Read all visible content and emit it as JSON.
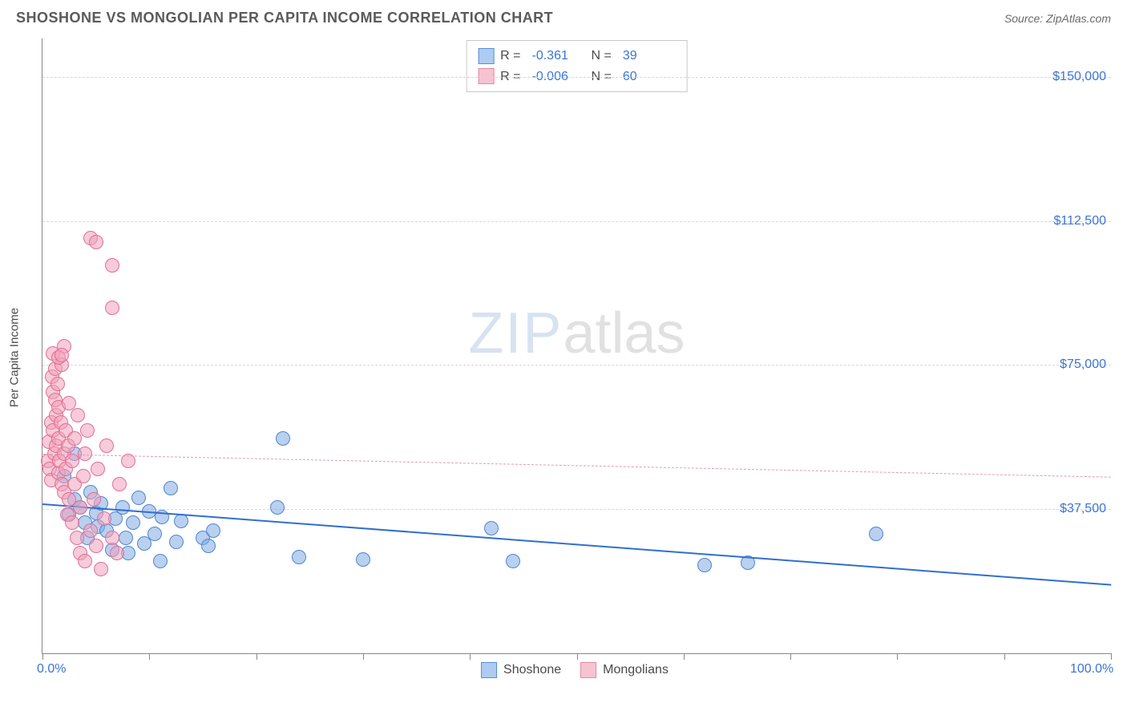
{
  "header": {
    "title": "SHOSHONE VS MONGOLIAN PER CAPITA INCOME CORRELATION CHART",
    "source": "Source: ZipAtlas.com"
  },
  "watermark": {
    "left": "ZIP",
    "right": "atlas"
  },
  "chart": {
    "type": "scatter",
    "y_axis_label": "Per Capita Income",
    "background_color": "#ffffff",
    "grid_color": "#d8d8d8",
    "axis_color": "#888888",
    "label_color": "#3b74d4",
    "text_color": "#4a4a4a",
    "xlim": [
      0,
      100
    ],
    "ylim": [
      0,
      160000
    ],
    "x_ticks": [
      0,
      10,
      20,
      30,
      40,
      50,
      60,
      70,
      80,
      90,
      100
    ],
    "x_tick_labels": {
      "0": "0.0%",
      "100": "100.0%"
    },
    "y_gridlines": [
      {
        "v": 37500,
        "label": "$37,500"
      },
      {
        "v": 75000,
        "label": "$75,000"
      },
      {
        "v": 112500,
        "label": "$112,500"
      },
      {
        "v": 150000,
        "label": "$150,000"
      }
    ],
    "legend_top": [
      {
        "swatch_fill": "#aeccf2",
        "swatch_border": "#5a8ed6",
        "r_label": "R =",
        "r": "-0.361",
        "n_label": "N =",
        "n": "39"
      },
      {
        "swatch_fill": "#f6c3d1",
        "swatch_border": "#e48aa4",
        "r_label": "R =",
        "r": "-0.006",
        "n_label": "N =",
        "n": "60"
      }
    ],
    "legend_bottom": [
      {
        "swatch_fill": "#aeccf2",
        "swatch_border": "#5a8ed6",
        "label": "Shoshone"
      },
      {
        "swatch_fill": "#f6c3d1",
        "swatch_border": "#e48aa4",
        "label": "Mongolians"
      }
    ],
    "series": {
      "shoshone": {
        "marker_fill": "rgba(130,170,225,0.55)",
        "marker_stroke": "#4f86d1",
        "marker_radius": 9,
        "trend": {
          "color": "#2f6fd0",
          "width": 2.5,
          "dash": "solid",
          "y_at_x0": 39000,
          "y_at_x100": 18000
        },
        "points": [
          [
            2,
            46000
          ],
          [
            2.5,
            36000
          ],
          [
            3,
            40000
          ],
          [
            3,
            52000
          ],
          [
            3.5,
            38000
          ],
          [
            4,
            34000
          ],
          [
            4.2,
            30000
          ],
          [
            4.5,
            42000
          ],
          [
            5,
            36500
          ],
          [
            5.2,
            33000
          ],
          [
            5.5,
            39000
          ],
          [
            6,
            32000
          ],
          [
            6.5,
            27000
          ],
          [
            6.8,
            35000
          ],
          [
            7.5,
            38000
          ],
          [
            7.8,
            30000
          ],
          [
            8,
            26000
          ],
          [
            8.5,
            34000
          ],
          [
            9,
            40500
          ],
          [
            9.5,
            28500
          ],
          [
            10,
            37000
          ],
          [
            10.5,
            31000
          ],
          [
            11,
            24000
          ],
          [
            11.2,
            35500
          ],
          [
            12,
            43000
          ],
          [
            12.5,
            29000
          ],
          [
            13,
            34500
          ],
          [
            15,
            30000
          ],
          [
            15.5,
            28000
          ],
          [
            16,
            32000
          ],
          [
            22,
            38000
          ],
          [
            22.5,
            56000
          ],
          [
            24,
            25000
          ],
          [
            30,
            24500
          ],
          [
            42,
            32500
          ],
          [
            44,
            24000
          ],
          [
            62,
            23000
          ],
          [
            66,
            23500
          ],
          [
            78,
            31000
          ]
        ]
      },
      "mongolians": {
        "marker_fill": "rgba(240,160,185,0.55)",
        "marker_stroke": "#e06f93",
        "marker_radius": 9,
        "trend": {
          "color": "#e49ab1",
          "width": 1.5,
          "dash": "6,6",
          "y_at_x0": 52000,
          "y_at_x100": 46000
        },
        "points": [
          [
            0.5,
            50000
          ],
          [
            0.6,
            55000
          ],
          [
            0.7,
            48000
          ],
          [
            0.8,
            60000
          ],
          [
            0.8,
            45000
          ],
          [
            0.9,
            72000
          ],
          [
            1,
            78000
          ],
          [
            1,
            68000
          ],
          [
            1,
            58000
          ],
          [
            1.1,
            52000
          ],
          [
            1.2,
            66000
          ],
          [
            1.2,
            74000
          ],
          [
            1.3,
            62000
          ],
          [
            1.3,
            54000
          ],
          [
            1.4,
            70000
          ],
          [
            1.5,
            47000
          ],
          [
            1.5,
            64000
          ],
          [
            1.5,
            56000
          ],
          [
            1.6,
            50000
          ],
          [
            1.7,
            60000
          ],
          [
            1.8,
            44000
          ],
          [
            1.8,
            75000
          ],
          [
            2,
            80000
          ],
          [
            2,
            52000
          ],
          [
            2,
            42000
          ],
          [
            2.2,
            58000
          ],
          [
            2.2,
            48000
          ],
          [
            2.3,
            36000
          ],
          [
            2.4,
            54000
          ],
          [
            2.5,
            65000
          ],
          [
            2.5,
            40000
          ],
          [
            2.8,
            50000
          ],
          [
            2.8,
            34000
          ],
          [
            3,
            44000
          ],
          [
            3,
            56000
          ],
          [
            3.2,
            30000
          ],
          [
            3.3,
            62000
          ],
          [
            3.5,
            38000
          ],
          [
            3.5,
            26000
          ],
          [
            3.8,
            46000
          ],
          [
            4,
            52000
          ],
          [
            4,
            24000
          ],
          [
            4.2,
            58000
          ],
          [
            4.5,
            32000
          ],
          [
            4.8,
            40000
          ],
          [
            5,
            28000
          ],
          [
            5.2,
            48000
          ],
          [
            5.5,
            22000
          ],
          [
            5.8,
            35000
          ],
          [
            6,
            54000
          ],
          [
            6.5,
            30000
          ],
          [
            7,
            26000
          ],
          [
            7.2,
            44000
          ],
          [
            8,
            50000
          ],
          [
            4.5,
            108000
          ],
          [
            5,
            107000
          ],
          [
            6.5,
            101000
          ],
          [
            6.5,
            90000
          ],
          [
            1.5,
            77000
          ],
          [
            1.8,
            77500
          ]
        ]
      }
    }
  }
}
